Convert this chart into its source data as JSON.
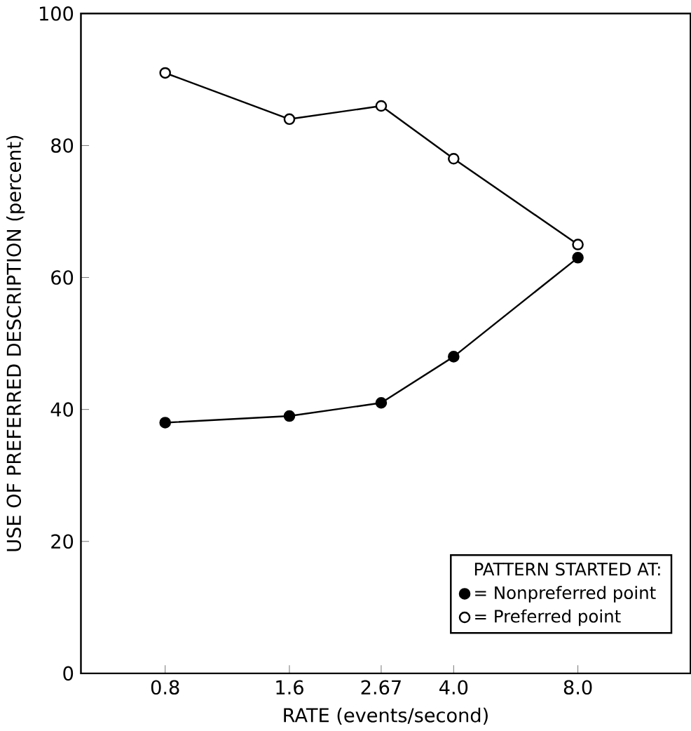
{
  "chart_data": {
    "type": "line",
    "xlabel": "RATE (events/second)",
    "ylabel": "USE OF PREFERRED DESCRIPTION (percent)",
    "legend_title": "PATTERN STARTED AT:",
    "x": [
      0.8,
      1.6,
      2.67,
      4.0,
      8.0
    ],
    "series": [
      {
        "name": "= Nonpreferred point",
        "color": "#000000",
        "values": [
          38,
          39,
          41,
          48,
          63
        ]
      },
      {
        "name": "= Preferred point",
        "color": "#000000",
        "values": [
          91,
          84,
          86,
          78,
          65
        ]
      }
    ],
    "log": "x",
    "xlim": [
      0.5,
      15
    ],
    "ylim": [
      0,
      100
    ],
    "xticks": [
      0.8,
      1.6,
      2.67,
      {
        "value": 4.0,
        "label": "4.0"
      },
      {
        "value": 8.0,
        "label": "8.0"
      }
    ],
    "yticks": [
      0,
      20,
      40,
      60,
      80,
      100
    ],
    "legend": "bottom right",
    "marker": "circle",
    "line_style": "solid",
    "grid": false
  }
}
